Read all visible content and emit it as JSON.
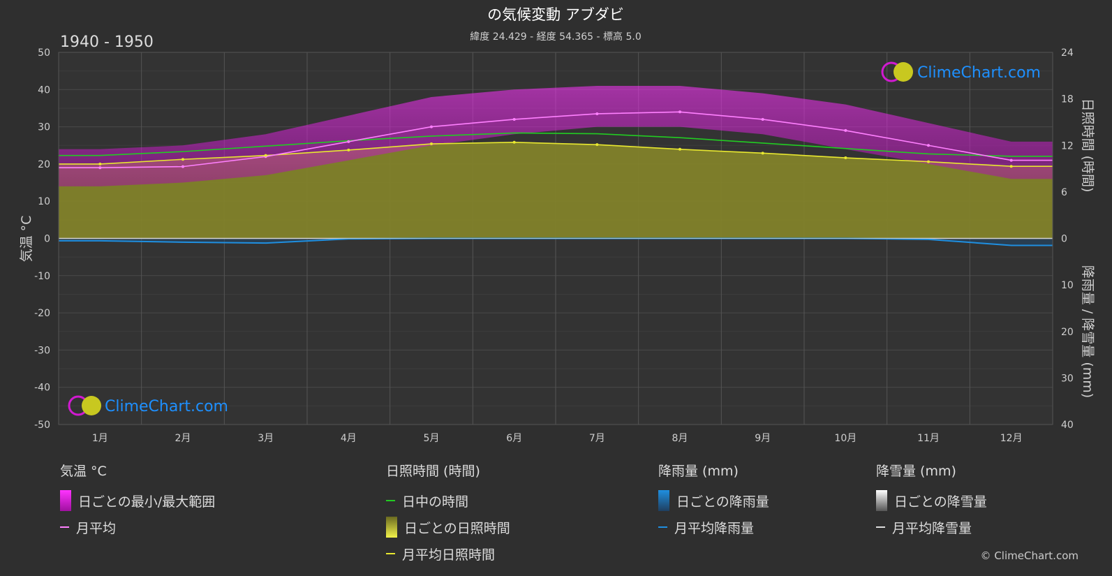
{
  "title": "の気候変動 アブダビ",
  "subtitle": "緯度 24.429 - 経度 54.365 - 標高 5.0",
  "period": "1940 - 1950",
  "brand": "ClimeChart.com",
  "copyright": "© ClimeChart.com",
  "colors": {
    "background": "#2f2f2f",
    "temp_range": "#d11ad1",
    "temp_mean": "#ff80ff",
    "daylight": "#22cc22",
    "sunshine_fill": "#8a8a2a",
    "sunshine_mean": "#e8e830",
    "rain": "#1f8fe0",
    "snow": "#cccccc"
  },
  "chart_data": {
    "type": "line",
    "months": [
      "1月",
      "2月",
      "3月",
      "4月",
      "5月",
      "6月",
      "7月",
      "8月",
      "9月",
      "10月",
      "11月",
      "12月"
    ],
    "y_left": {
      "label": "気温 °C",
      "range": [
        -50,
        50
      ],
      "ticks": [
        50,
        40,
        30,
        20,
        10,
        0,
        -10,
        -20,
        -30,
        -40,
        -50
      ]
    },
    "y_right_top": {
      "label": "日照時間 (時間)",
      "range": [
        0,
        24
      ],
      "ticks": [
        24,
        18,
        12,
        6,
        0
      ]
    },
    "y_right_bottom": {
      "label": "降雨量 / 降雪量 (mm)",
      "range": [
        0,
        40
      ],
      "ticks": [
        10,
        20,
        30,
        40
      ]
    },
    "series": [
      {
        "name": "月平均",
        "unit": "°C",
        "values": [
          19.0,
          19.3,
          22.0,
          26.0,
          30.0,
          32.0,
          33.5,
          34.0,
          32.0,
          29.0,
          25.0,
          21.0
        ]
      },
      {
        "name": "日ごとの最小/最大範囲 (min)",
        "unit": "°C",
        "values": [
          14,
          15,
          17,
          21,
          25,
          28,
          30,
          30,
          28,
          24,
          20,
          16
        ]
      },
      {
        "name": "日ごとの最小/最大範囲 (max)",
        "unit": "°C",
        "values": [
          24,
          25,
          28,
          33,
          38,
          40,
          41,
          41,
          39,
          36,
          31,
          26
        ]
      },
      {
        "name": "日中の時間",
        "unit": "時間",
        "values": [
          10.7,
          11.2,
          11.9,
          12.6,
          13.2,
          13.6,
          13.5,
          13.0,
          12.3,
          11.6,
          10.9,
          10.6
        ]
      },
      {
        "name": "月平均日照時間",
        "unit": "時間",
        "values": [
          9.6,
          10.2,
          10.7,
          11.4,
          12.2,
          12.4,
          12.1,
          11.5,
          11.0,
          10.4,
          9.9,
          9.3
        ]
      },
      {
        "name": "月平均降雨量",
        "unit": "mm",
        "values": [
          0.5,
          0.8,
          1.0,
          0.1,
          0.0,
          0.0,
          0.0,
          0.0,
          0.0,
          0.0,
          0.2,
          1.5
        ]
      },
      {
        "name": "月平均降雪量",
        "unit": "mm",
        "values": [
          0,
          0,
          0,
          0,
          0,
          0,
          0,
          0,
          0,
          0,
          0,
          0
        ]
      }
    ],
    "grid": true
  },
  "legend": {
    "temp": {
      "header": "気温 °C",
      "range": "日ごとの最小/最大範囲",
      "mean": "月平均"
    },
    "sun": {
      "header": "日照時間 (時間)",
      "daylight": "日中の時間",
      "daily": "日ごとの日照時間",
      "mean": "月平均日照時間"
    },
    "rain": {
      "header": "降雨量 (mm)",
      "daily": "日ごとの降雨量",
      "mean": "月平均降雨量"
    },
    "snow": {
      "header": "降雪量 (mm)",
      "daily": "日ごとの降雪量",
      "mean": "月平均降雪量"
    }
  }
}
